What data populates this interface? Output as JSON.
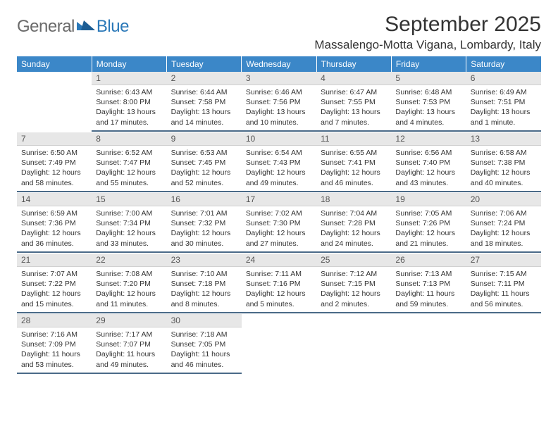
{
  "logo": {
    "general": "General",
    "blue": "Blue"
  },
  "title": "September 2025",
  "location": "Massalengo-Motta Vigana, Lombardy, Italy",
  "colors": {
    "header_bg": "#3b87c8",
    "header_text": "#ffffff",
    "daynum_bg": "#e7e7e7",
    "row_divider": "#4a6a88",
    "logo_gray": "#6a6a6a",
    "logo_blue": "#2a78b8"
  },
  "weekdays": [
    "Sunday",
    "Monday",
    "Tuesday",
    "Wednesday",
    "Thursday",
    "Friday",
    "Saturday"
  ],
  "weeks": [
    [
      {
        "n": "",
        "sunrise": "",
        "sunset": "",
        "daylight": ""
      },
      {
        "n": "1",
        "sunrise": "Sunrise: 6:43 AM",
        "sunset": "Sunset: 8:00 PM",
        "daylight": "Daylight: 13 hours and 17 minutes."
      },
      {
        "n": "2",
        "sunrise": "Sunrise: 6:44 AM",
        "sunset": "Sunset: 7:58 PM",
        "daylight": "Daylight: 13 hours and 14 minutes."
      },
      {
        "n": "3",
        "sunrise": "Sunrise: 6:46 AM",
        "sunset": "Sunset: 7:56 PM",
        "daylight": "Daylight: 13 hours and 10 minutes."
      },
      {
        "n": "4",
        "sunrise": "Sunrise: 6:47 AM",
        "sunset": "Sunset: 7:55 PM",
        "daylight": "Daylight: 13 hours and 7 minutes."
      },
      {
        "n": "5",
        "sunrise": "Sunrise: 6:48 AM",
        "sunset": "Sunset: 7:53 PM",
        "daylight": "Daylight: 13 hours and 4 minutes."
      },
      {
        "n": "6",
        "sunrise": "Sunrise: 6:49 AM",
        "sunset": "Sunset: 7:51 PM",
        "daylight": "Daylight: 13 hours and 1 minute."
      }
    ],
    [
      {
        "n": "7",
        "sunrise": "Sunrise: 6:50 AM",
        "sunset": "Sunset: 7:49 PM",
        "daylight": "Daylight: 12 hours and 58 minutes."
      },
      {
        "n": "8",
        "sunrise": "Sunrise: 6:52 AM",
        "sunset": "Sunset: 7:47 PM",
        "daylight": "Daylight: 12 hours and 55 minutes."
      },
      {
        "n": "9",
        "sunrise": "Sunrise: 6:53 AM",
        "sunset": "Sunset: 7:45 PM",
        "daylight": "Daylight: 12 hours and 52 minutes."
      },
      {
        "n": "10",
        "sunrise": "Sunrise: 6:54 AM",
        "sunset": "Sunset: 7:43 PM",
        "daylight": "Daylight: 12 hours and 49 minutes."
      },
      {
        "n": "11",
        "sunrise": "Sunrise: 6:55 AM",
        "sunset": "Sunset: 7:41 PM",
        "daylight": "Daylight: 12 hours and 46 minutes."
      },
      {
        "n": "12",
        "sunrise": "Sunrise: 6:56 AM",
        "sunset": "Sunset: 7:40 PM",
        "daylight": "Daylight: 12 hours and 43 minutes."
      },
      {
        "n": "13",
        "sunrise": "Sunrise: 6:58 AM",
        "sunset": "Sunset: 7:38 PM",
        "daylight": "Daylight: 12 hours and 40 minutes."
      }
    ],
    [
      {
        "n": "14",
        "sunrise": "Sunrise: 6:59 AM",
        "sunset": "Sunset: 7:36 PM",
        "daylight": "Daylight: 12 hours and 36 minutes."
      },
      {
        "n": "15",
        "sunrise": "Sunrise: 7:00 AM",
        "sunset": "Sunset: 7:34 PM",
        "daylight": "Daylight: 12 hours and 33 minutes."
      },
      {
        "n": "16",
        "sunrise": "Sunrise: 7:01 AM",
        "sunset": "Sunset: 7:32 PM",
        "daylight": "Daylight: 12 hours and 30 minutes."
      },
      {
        "n": "17",
        "sunrise": "Sunrise: 7:02 AM",
        "sunset": "Sunset: 7:30 PM",
        "daylight": "Daylight: 12 hours and 27 minutes."
      },
      {
        "n": "18",
        "sunrise": "Sunrise: 7:04 AM",
        "sunset": "Sunset: 7:28 PM",
        "daylight": "Daylight: 12 hours and 24 minutes."
      },
      {
        "n": "19",
        "sunrise": "Sunrise: 7:05 AM",
        "sunset": "Sunset: 7:26 PM",
        "daylight": "Daylight: 12 hours and 21 minutes."
      },
      {
        "n": "20",
        "sunrise": "Sunrise: 7:06 AM",
        "sunset": "Sunset: 7:24 PM",
        "daylight": "Daylight: 12 hours and 18 minutes."
      }
    ],
    [
      {
        "n": "21",
        "sunrise": "Sunrise: 7:07 AM",
        "sunset": "Sunset: 7:22 PM",
        "daylight": "Daylight: 12 hours and 15 minutes."
      },
      {
        "n": "22",
        "sunrise": "Sunrise: 7:08 AM",
        "sunset": "Sunset: 7:20 PM",
        "daylight": "Daylight: 12 hours and 11 minutes."
      },
      {
        "n": "23",
        "sunrise": "Sunrise: 7:10 AM",
        "sunset": "Sunset: 7:18 PM",
        "daylight": "Daylight: 12 hours and 8 minutes."
      },
      {
        "n": "24",
        "sunrise": "Sunrise: 7:11 AM",
        "sunset": "Sunset: 7:16 PM",
        "daylight": "Daylight: 12 hours and 5 minutes."
      },
      {
        "n": "25",
        "sunrise": "Sunrise: 7:12 AM",
        "sunset": "Sunset: 7:15 PM",
        "daylight": "Daylight: 12 hours and 2 minutes."
      },
      {
        "n": "26",
        "sunrise": "Sunrise: 7:13 AM",
        "sunset": "Sunset: 7:13 PM",
        "daylight": "Daylight: 11 hours and 59 minutes."
      },
      {
        "n": "27",
        "sunrise": "Sunrise: 7:15 AM",
        "sunset": "Sunset: 7:11 PM",
        "daylight": "Daylight: 11 hours and 56 minutes."
      }
    ],
    [
      {
        "n": "28",
        "sunrise": "Sunrise: 7:16 AM",
        "sunset": "Sunset: 7:09 PM",
        "daylight": "Daylight: 11 hours and 53 minutes."
      },
      {
        "n": "29",
        "sunrise": "Sunrise: 7:17 AM",
        "sunset": "Sunset: 7:07 PM",
        "daylight": "Daylight: 11 hours and 49 minutes."
      },
      {
        "n": "30",
        "sunrise": "Sunrise: 7:18 AM",
        "sunset": "Sunset: 7:05 PM",
        "daylight": "Daylight: 11 hours and 46 minutes."
      },
      {
        "n": "",
        "sunrise": "",
        "sunset": "",
        "daylight": ""
      },
      {
        "n": "",
        "sunrise": "",
        "sunset": "",
        "daylight": ""
      },
      {
        "n": "",
        "sunrise": "",
        "sunset": "",
        "daylight": ""
      },
      {
        "n": "",
        "sunrise": "",
        "sunset": "",
        "daylight": ""
      }
    ]
  ]
}
